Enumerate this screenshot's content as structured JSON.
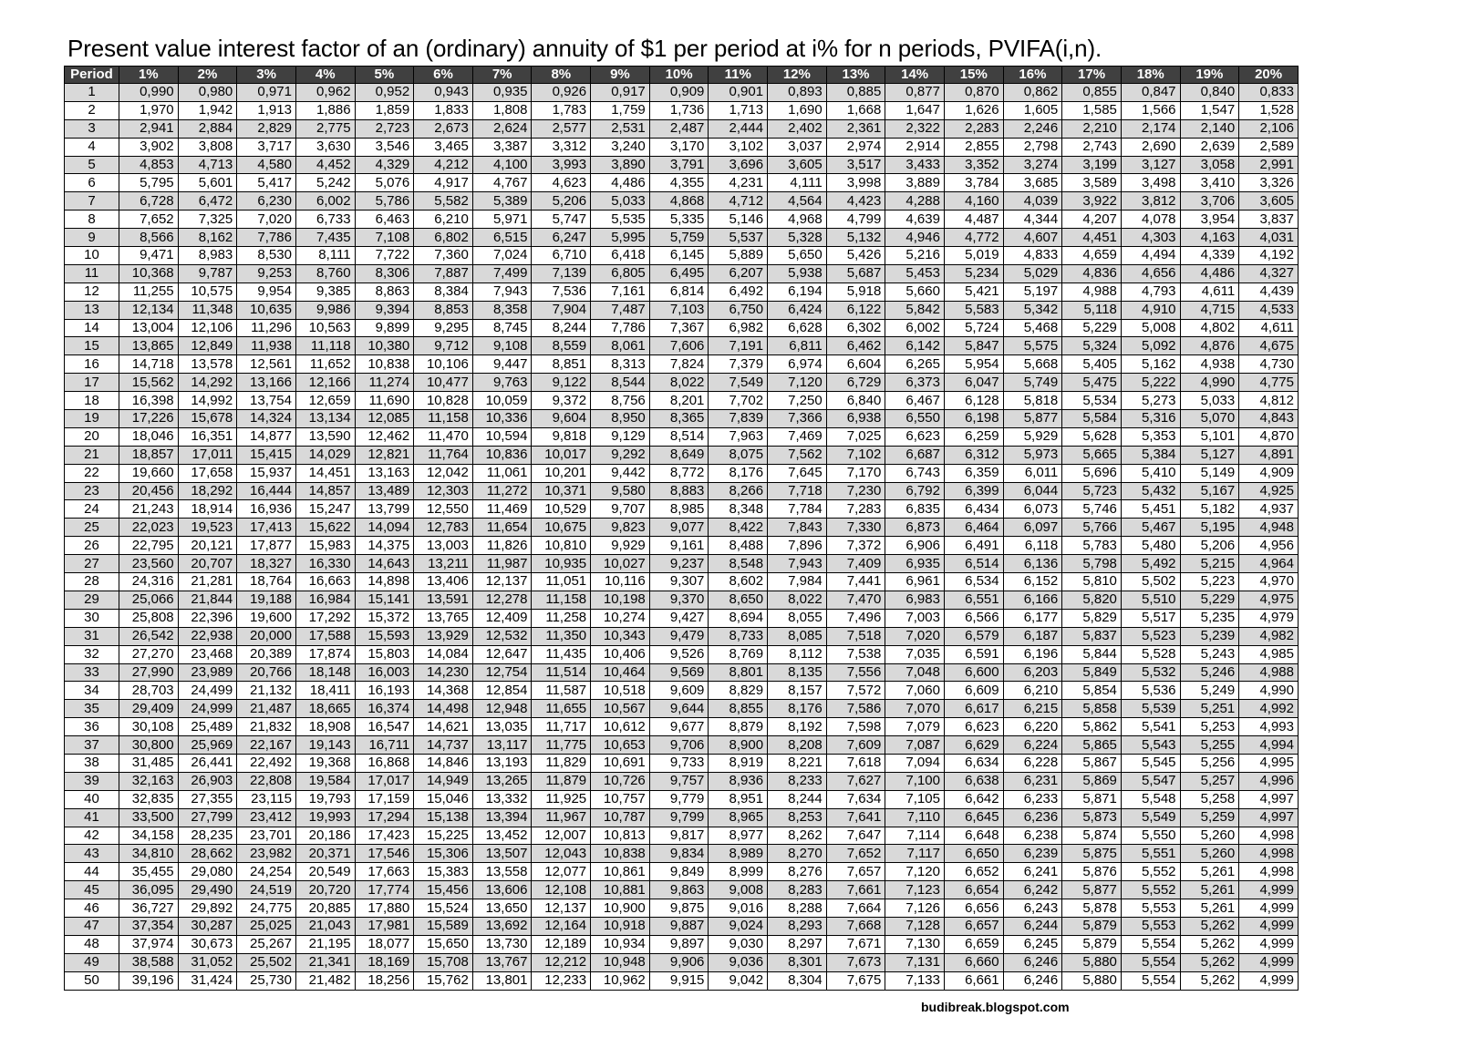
{
  "title": "Present value interest factor of an (ordinary) annuity of $1 per period at i% for n periods, PVIFA(i,n).",
  "footer": "budibreak.blogspot.com",
  "colors": {
    "header_bg": "#404040",
    "header_text": "#ffffff",
    "odd_row": "#d9d9d9",
    "even_row": "#ffffff"
  },
  "table": {
    "headers": [
      "Period",
      "1%",
      "2%",
      "3%",
      "4%",
      "5%",
      "6%",
      "7%",
      "8%",
      "9%",
      "10%",
      "11%",
      "12%",
      "13%",
      "14%",
      "15%",
      "16%",
      "17%",
      "18%",
      "19%",
      "20%"
    ],
    "rows": [
      [
        "1",
        "0,990",
        "0,980",
        "0,971",
        "0,962",
        "0,952",
        "0,943",
        "0,935",
        "0,926",
        "0,917",
        "0,909",
        "0,901",
        "0,893",
        "0,885",
        "0,877",
        "0,870",
        "0,862",
        "0,855",
        "0,847",
        "0,840",
        "0,833"
      ],
      [
        "2",
        "1,970",
        "1,942",
        "1,913",
        "1,886",
        "1,859",
        "1,833",
        "1,808",
        "1,783",
        "1,759",
        "1,736",
        "1,713",
        "1,690",
        "1,668",
        "1,647",
        "1,626",
        "1,605",
        "1,585",
        "1,566",
        "1,547",
        "1,528"
      ],
      [
        "3",
        "2,941",
        "2,884",
        "2,829",
        "2,775",
        "2,723",
        "2,673",
        "2,624",
        "2,577",
        "2,531",
        "2,487",
        "2,444",
        "2,402",
        "2,361",
        "2,322",
        "2,283",
        "2,246",
        "2,210",
        "2,174",
        "2,140",
        "2,106"
      ],
      [
        "4",
        "3,902",
        "3,808",
        "3,717",
        "3,630",
        "3,546",
        "3,465",
        "3,387",
        "3,312",
        "3,240",
        "3,170",
        "3,102",
        "3,037",
        "2,974",
        "2,914",
        "2,855",
        "2,798",
        "2,743",
        "2,690",
        "2,639",
        "2,589"
      ],
      [
        "5",
        "4,853",
        "4,713",
        "4,580",
        "4,452",
        "4,329",
        "4,212",
        "4,100",
        "3,993",
        "3,890",
        "3,791",
        "3,696",
        "3,605",
        "3,517",
        "3,433",
        "3,352",
        "3,274",
        "3,199",
        "3,127",
        "3,058",
        "2,991"
      ],
      [
        "6",
        "5,795",
        "5,601",
        "5,417",
        "5,242",
        "5,076",
        "4,917",
        "4,767",
        "4,623",
        "4,486",
        "4,355",
        "4,231",
        "4,111",
        "3,998",
        "3,889",
        "3,784",
        "3,685",
        "3,589",
        "3,498",
        "3,410",
        "3,326"
      ],
      [
        "7",
        "6,728",
        "6,472",
        "6,230",
        "6,002",
        "5,786",
        "5,582",
        "5,389",
        "5,206",
        "5,033",
        "4,868",
        "4,712",
        "4,564",
        "4,423",
        "4,288",
        "4,160",
        "4,039",
        "3,922",
        "3,812",
        "3,706",
        "3,605"
      ],
      [
        "8",
        "7,652",
        "7,325",
        "7,020",
        "6,733",
        "6,463",
        "6,210",
        "5,971",
        "5,747",
        "5,535",
        "5,335",
        "5,146",
        "4,968",
        "4,799",
        "4,639",
        "4,487",
        "4,344",
        "4,207",
        "4,078",
        "3,954",
        "3,837"
      ],
      [
        "9",
        "8,566",
        "8,162",
        "7,786",
        "7,435",
        "7,108",
        "6,802",
        "6,515",
        "6,247",
        "5,995",
        "5,759",
        "5,537",
        "5,328",
        "5,132",
        "4,946",
        "4,772",
        "4,607",
        "4,451",
        "4,303",
        "4,163",
        "4,031"
      ],
      [
        "10",
        "9,471",
        "8,983",
        "8,530",
        "8,111",
        "7,722",
        "7,360",
        "7,024",
        "6,710",
        "6,418",
        "6,145",
        "5,889",
        "5,650",
        "5,426",
        "5,216",
        "5,019",
        "4,833",
        "4,659",
        "4,494",
        "4,339",
        "4,192"
      ],
      [
        "11",
        "10,368",
        "9,787",
        "9,253",
        "8,760",
        "8,306",
        "7,887",
        "7,499",
        "7,139",
        "6,805",
        "6,495",
        "6,207",
        "5,938",
        "5,687",
        "5,453",
        "5,234",
        "5,029",
        "4,836",
        "4,656",
        "4,486",
        "4,327"
      ],
      [
        "12",
        "11,255",
        "10,575",
        "9,954",
        "9,385",
        "8,863",
        "8,384",
        "7,943",
        "7,536",
        "7,161",
        "6,814",
        "6,492",
        "6,194",
        "5,918",
        "5,660",
        "5,421",
        "5,197",
        "4,988",
        "4,793",
        "4,611",
        "4,439"
      ],
      [
        "13",
        "12,134",
        "11,348",
        "10,635",
        "9,986",
        "9,394",
        "8,853",
        "8,358",
        "7,904",
        "7,487",
        "7,103",
        "6,750",
        "6,424",
        "6,122",
        "5,842",
        "5,583",
        "5,342",
        "5,118",
        "4,910",
        "4,715",
        "4,533"
      ],
      [
        "14",
        "13,004",
        "12,106",
        "11,296",
        "10,563",
        "9,899",
        "9,295",
        "8,745",
        "8,244",
        "7,786",
        "7,367",
        "6,982",
        "6,628",
        "6,302",
        "6,002",
        "5,724",
        "5,468",
        "5,229",
        "5,008",
        "4,802",
        "4,611"
      ],
      [
        "15",
        "13,865",
        "12,849",
        "11,938",
        "11,118",
        "10,380",
        "9,712",
        "9,108",
        "8,559",
        "8,061",
        "7,606",
        "7,191",
        "6,811",
        "6,462",
        "6,142",
        "5,847",
        "5,575",
        "5,324",
        "5,092",
        "4,876",
        "4,675"
      ],
      [
        "16",
        "14,718",
        "13,578",
        "12,561",
        "11,652",
        "10,838",
        "10,106",
        "9,447",
        "8,851",
        "8,313",
        "7,824",
        "7,379",
        "6,974",
        "6,604",
        "6,265",
        "5,954",
        "5,668",
        "5,405",
        "5,162",
        "4,938",
        "4,730"
      ],
      [
        "17",
        "15,562",
        "14,292",
        "13,166",
        "12,166",
        "11,274",
        "10,477",
        "9,763",
        "9,122",
        "8,544",
        "8,022",
        "7,549",
        "7,120",
        "6,729",
        "6,373",
        "6,047",
        "5,749",
        "5,475",
        "5,222",
        "4,990",
        "4,775"
      ],
      [
        "18",
        "16,398",
        "14,992",
        "13,754",
        "12,659",
        "11,690",
        "10,828",
        "10,059",
        "9,372",
        "8,756",
        "8,201",
        "7,702",
        "7,250",
        "6,840",
        "6,467",
        "6,128",
        "5,818",
        "5,534",
        "5,273",
        "5,033",
        "4,812"
      ],
      [
        "19",
        "17,226",
        "15,678",
        "14,324",
        "13,134",
        "12,085",
        "11,158",
        "10,336",
        "9,604",
        "8,950",
        "8,365",
        "7,839",
        "7,366",
        "6,938",
        "6,550",
        "6,198",
        "5,877",
        "5,584",
        "5,316",
        "5,070",
        "4,843"
      ],
      [
        "20",
        "18,046",
        "16,351",
        "14,877",
        "13,590",
        "12,462",
        "11,470",
        "10,594",
        "9,818",
        "9,129",
        "8,514",
        "7,963",
        "7,469",
        "7,025",
        "6,623",
        "6,259",
        "5,929",
        "5,628",
        "5,353",
        "5,101",
        "4,870"
      ],
      [
        "21",
        "18,857",
        "17,011",
        "15,415",
        "14,029",
        "12,821",
        "11,764",
        "10,836",
        "10,017",
        "9,292",
        "8,649",
        "8,075",
        "7,562",
        "7,102",
        "6,687",
        "6,312",
        "5,973",
        "5,665",
        "5,384",
        "5,127",
        "4,891"
      ],
      [
        "22",
        "19,660",
        "17,658",
        "15,937",
        "14,451",
        "13,163",
        "12,042",
        "11,061",
        "10,201",
        "9,442",
        "8,772",
        "8,176",
        "7,645",
        "7,170",
        "6,743",
        "6,359",
        "6,011",
        "5,696",
        "5,410",
        "5,149",
        "4,909"
      ],
      [
        "23",
        "20,456",
        "18,292",
        "16,444",
        "14,857",
        "13,489",
        "12,303",
        "11,272",
        "10,371",
        "9,580",
        "8,883",
        "8,266",
        "7,718",
        "7,230",
        "6,792",
        "6,399",
        "6,044",
        "5,723",
        "5,432",
        "5,167",
        "4,925"
      ],
      [
        "24",
        "21,243",
        "18,914",
        "16,936",
        "15,247",
        "13,799",
        "12,550",
        "11,469",
        "10,529",
        "9,707",
        "8,985",
        "8,348",
        "7,784",
        "7,283",
        "6,835",
        "6,434",
        "6,073",
        "5,746",
        "5,451",
        "5,182",
        "4,937"
      ],
      [
        "25",
        "22,023",
        "19,523",
        "17,413",
        "15,622",
        "14,094",
        "12,783",
        "11,654",
        "10,675",
        "9,823",
        "9,077",
        "8,422",
        "7,843",
        "7,330",
        "6,873",
        "6,464",
        "6,097",
        "5,766",
        "5,467",
        "5,195",
        "4,948"
      ],
      [
        "26",
        "22,795",
        "20,121",
        "17,877",
        "15,983",
        "14,375",
        "13,003",
        "11,826",
        "10,810",
        "9,929",
        "9,161",
        "8,488",
        "7,896",
        "7,372",
        "6,906",
        "6,491",
        "6,118",
        "5,783",
        "5,480",
        "5,206",
        "4,956"
      ],
      [
        "27",
        "23,560",
        "20,707",
        "18,327",
        "16,330",
        "14,643",
        "13,211",
        "11,987",
        "10,935",
        "10,027",
        "9,237",
        "8,548",
        "7,943",
        "7,409",
        "6,935",
        "6,514",
        "6,136",
        "5,798",
        "5,492",
        "5,215",
        "4,964"
      ],
      [
        "28",
        "24,316",
        "21,281",
        "18,764",
        "16,663",
        "14,898",
        "13,406",
        "12,137",
        "11,051",
        "10,116",
        "9,307",
        "8,602",
        "7,984",
        "7,441",
        "6,961",
        "6,534",
        "6,152",
        "5,810",
        "5,502",
        "5,223",
        "4,970"
      ],
      [
        "29",
        "25,066",
        "21,844",
        "19,188",
        "16,984",
        "15,141",
        "13,591",
        "12,278",
        "11,158",
        "10,198",
        "9,370",
        "8,650",
        "8,022",
        "7,470",
        "6,983",
        "6,551",
        "6,166",
        "5,820",
        "5,510",
        "5,229",
        "4,975"
      ],
      [
        "30",
        "25,808",
        "22,396",
        "19,600",
        "17,292",
        "15,372",
        "13,765",
        "12,409",
        "11,258",
        "10,274",
        "9,427",
        "8,694",
        "8,055",
        "7,496",
        "7,003",
        "6,566",
        "6,177",
        "5,829",
        "5,517",
        "5,235",
        "4,979"
      ],
      [
        "31",
        "26,542",
        "22,938",
        "20,000",
        "17,588",
        "15,593",
        "13,929",
        "12,532",
        "11,350",
        "10,343",
        "9,479",
        "8,733",
        "8,085",
        "7,518",
        "7,020",
        "6,579",
        "6,187",
        "5,837",
        "5,523",
        "5,239",
        "4,982"
      ],
      [
        "32",
        "27,270",
        "23,468",
        "20,389",
        "17,874",
        "15,803",
        "14,084",
        "12,647",
        "11,435",
        "10,406",
        "9,526",
        "8,769",
        "8,112",
        "7,538",
        "7,035",
        "6,591",
        "6,196",
        "5,844",
        "5,528",
        "5,243",
        "4,985"
      ],
      [
        "33",
        "27,990",
        "23,989",
        "20,766",
        "18,148",
        "16,003",
        "14,230",
        "12,754",
        "11,514",
        "10,464",
        "9,569",
        "8,801",
        "8,135",
        "7,556",
        "7,048",
        "6,600",
        "6,203",
        "5,849",
        "5,532",
        "5,246",
        "4,988"
      ],
      [
        "34",
        "28,703",
        "24,499",
        "21,132",
        "18,411",
        "16,193",
        "14,368",
        "12,854",
        "11,587",
        "10,518",
        "9,609",
        "8,829",
        "8,157",
        "7,572",
        "7,060",
        "6,609",
        "6,210",
        "5,854",
        "5,536",
        "5,249",
        "4,990"
      ],
      [
        "35",
        "29,409",
        "24,999",
        "21,487",
        "18,665",
        "16,374",
        "14,498",
        "12,948",
        "11,655",
        "10,567",
        "9,644",
        "8,855",
        "8,176",
        "7,586",
        "7,070",
        "6,617",
        "6,215",
        "5,858",
        "5,539",
        "5,251",
        "4,992"
      ],
      [
        "36",
        "30,108",
        "25,489",
        "21,832",
        "18,908",
        "16,547",
        "14,621",
        "13,035",
        "11,717",
        "10,612",
        "9,677",
        "8,879",
        "8,192",
        "7,598",
        "7,079",
        "6,623",
        "6,220",
        "5,862",
        "5,541",
        "5,253",
        "4,993"
      ],
      [
        "37",
        "30,800",
        "25,969",
        "22,167",
        "19,143",
        "16,711",
        "14,737",
        "13,117",
        "11,775",
        "10,653",
        "9,706",
        "8,900",
        "8,208",
        "7,609",
        "7,087",
        "6,629",
        "6,224",
        "5,865",
        "5,543",
        "5,255",
        "4,994"
      ],
      [
        "38",
        "31,485",
        "26,441",
        "22,492",
        "19,368",
        "16,868",
        "14,846",
        "13,193",
        "11,829",
        "10,691",
        "9,733",
        "8,919",
        "8,221",
        "7,618",
        "7,094",
        "6,634",
        "6,228",
        "5,867",
        "5,545",
        "5,256",
        "4,995"
      ],
      [
        "39",
        "32,163",
        "26,903",
        "22,808",
        "19,584",
        "17,017",
        "14,949",
        "13,265",
        "11,879",
        "10,726",
        "9,757",
        "8,936",
        "8,233",
        "7,627",
        "7,100",
        "6,638",
        "6,231",
        "5,869",
        "5,547",
        "5,257",
        "4,996"
      ],
      [
        "40",
        "32,835",
        "27,355",
        "23,115",
        "19,793",
        "17,159",
        "15,046",
        "13,332",
        "11,925",
        "10,757",
        "9,779",
        "8,951",
        "8,244",
        "7,634",
        "7,105",
        "6,642",
        "6,233",
        "5,871",
        "5,548",
        "5,258",
        "4,997"
      ],
      [
        "41",
        "33,500",
        "27,799",
        "23,412",
        "19,993",
        "17,294",
        "15,138",
        "13,394",
        "11,967",
        "10,787",
        "9,799",
        "8,965",
        "8,253",
        "7,641",
        "7,110",
        "6,645",
        "6,236",
        "5,873",
        "5,549",
        "5,259",
        "4,997"
      ],
      [
        "42",
        "34,158",
        "28,235",
        "23,701",
        "20,186",
        "17,423",
        "15,225",
        "13,452",
        "12,007",
        "10,813",
        "9,817",
        "8,977",
        "8,262",
        "7,647",
        "7,114",
        "6,648",
        "6,238",
        "5,874",
        "5,550",
        "5,260",
        "4,998"
      ],
      [
        "43",
        "34,810",
        "28,662",
        "23,982",
        "20,371",
        "17,546",
        "15,306",
        "13,507",
        "12,043",
        "10,838",
        "9,834",
        "8,989",
        "8,270",
        "7,652",
        "7,117",
        "6,650",
        "6,239",
        "5,875",
        "5,551",
        "5,260",
        "4,998"
      ],
      [
        "44",
        "35,455",
        "29,080",
        "24,254",
        "20,549",
        "17,663",
        "15,383",
        "13,558",
        "12,077",
        "10,861",
        "9,849",
        "8,999",
        "8,276",
        "7,657",
        "7,120",
        "6,652",
        "6,241",
        "5,876",
        "5,552",
        "5,261",
        "4,998"
      ],
      [
        "45",
        "36,095",
        "29,490",
        "24,519",
        "20,720",
        "17,774",
        "15,456",
        "13,606",
        "12,108",
        "10,881",
        "9,863",
        "9,008",
        "8,283",
        "7,661",
        "7,123",
        "6,654",
        "6,242",
        "5,877",
        "5,552",
        "5,261",
        "4,999"
      ],
      [
        "46",
        "36,727",
        "29,892",
        "24,775",
        "20,885",
        "17,880",
        "15,524",
        "13,650",
        "12,137",
        "10,900",
        "9,875",
        "9,016",
        "8,288",
        "7,664",
        "7,126",
        "6,656",
        "6,243",
        "5,878",
        "5,553",
        "5,261",
        "4,999"
      ],
      [
        "47",
        "37,354",
        "30,287",
        "25,025",
        "21,043",
        "17,981",
        "15,589",
        "13,692",
        "12,164",
        "10,918",
        "9,887",
        "9,024",
        "8,293",
        "7,668",
        "7,128",
        "6,657",
        "6,244",
        "5,879",
        "5,553",
        "5,262",
        "4,999"
      ],
      [
        "48",
        "37,974",
        "30,673",
        "25,267",
        "21,195",
        "18,077",
        "15,650",
        "13,730",
        "12,189",
        "10,934",
        "9,897",
        "9,030",
        "8,297",
        "7,671",
        "7,130",
        "6,659",
        "6,245",
        "5,879",
        "5,554",
        "5,262",
        "4,999"
      ],
      [
        "49",
        "38,588",
        "31,052",
        "25,502",
        "21,341",
        "18,169",
        "15,708",
        "13,767",
        "12,212",
        "10,948",
        "9,906",
        "9,036",
        "8,301",
        "7,673",
        "7,131",
        "6,660",
        "6,246",
        "5,880",
        "5,554",
        "5,262",
        "4,999"
      ],
      [
        "50",
        "39,196",
        "31,424",
        "25,730",
        "21,482",
        "18,256",
        "15,762",
        "13,801",
        "12,233",
        "10,962",
        "9,915",
        "9,042",
        "8,304",
        "7,675",
        "7,133",
        "6,661",
        "6,246",
        "5,880",
        "5,554",
        "5,262",
        "4,999"
      ]
    ]
  }
}
